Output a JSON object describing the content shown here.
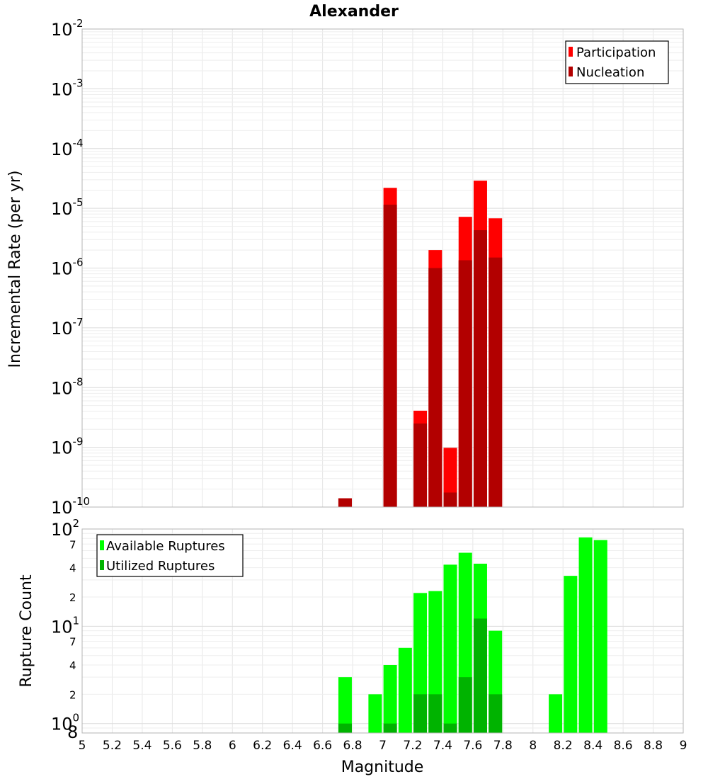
{
  "chart_data": [
    {
      "type": "bar",
      "title": "Alexander",
      "ylabel": "Incremental Rate (per yr)",
      "yscale": "log",
      "ylim": [
        1e-10,
        0.01
      ],
      "ytick_labels": [
        {
          "base": "10",
          "exp": "-10"
        },
        {
          "base": "10",
          "exp": "-9"
        },
        {
          "base": "10",
          "exp": "-8"
        },
        {
          "base": "10",
          "exp": "-7"
        },
        {
          "base": "10",
          "exp": "-6"
        },
        {
          "base": "10",
          "exp": "-5"
        },
        {
          "base": "10",
          "exp": "-4"
        },
        {
          "base": "10",
          "exp": "-3"
        },
        {
          "base": "10",
          "exp": "-2"
        }
      ],
      "xlim": [
        5,
        9
      ],
      "grid": true,
      "legend_position": "top-right",
      "series": [
        {
          "name": "Participation",
          "color": "#ff0000",
          "x": [
            6.75,
            7.05,
            7.25,
            7.35,
            7.45,
            7.55,
            7.65,
            7.75
          ],
          "values": [
            1.4e-10,
            2.2e-05,
            4.1e-09,
            2e-06,
            9.8e-10,
            7.2e-06,
            2.9e-05,
            6.8e-06
          ]
        },
        {
          "name": "Nucleation",
          "color": "#b20000",
          "x": [
            6.75,
            7.05,
            7.25,
            7.35,
            7.45,
            7.55,
            7.65,
            7.75
          ],
          "values": [
            1.4e-10,
            1.15e-05,
            2.5e-09,
            1e-06,
            1.75e-10,
            1.35e-06,
            4.3e-06,
            1.5e-06
          ]
        }
      ]
    },
    {
      "type": "bar",
      "ylabel": "Rupture Count",
      "xlabel": "Magnitude",
      "yscale": "log",
      "ylim": [
        0.8,
        100
      ],
      "major_ticks": [
        {
          "base": "10",
          "exp": "0"
        },
        {
          "base": "10",
          "exp": "1"
        },
        {
          "base": "10",
          "exp": "2"
        }
      ],
      "minor_tick_labels": [
        "8",
        "2",
        "4",
        "7",
        "2",
        "4",
        "7"
      ],
      "xlim": [
        5,
        9
      ],
      "xtick_labels": [
        "5",
        "5.2",
        "5.4",
        "5.6",
        "5.8",
        "6",
        "6.2",
        "6.4",
        "6.6",
        "6.8",
        "7",
        "7.2",
        "7.4",
        "7.6",
        "7.8",
        "8",
        "8.2",
        "8.4",
        "8.6",
        "8.8",
        "9"
      ],
      "grid": true,
      "legend_position": "top-left",
      "series": [
        {
          "name": "Available Ruptures",
          "color": "#00ff00",
          "x": [
            6.75,
            6.95,
            7.05,
            7.15,
            7.25,
            7.35,
            7.45,
            7.55,
            7.65,
            7.75,
            8.15,
            8.25,
            8.35,
            8.45
          ],
          "values": [
            3,
            2,
            4,
            6,
            22,
            23,
            43,
            57,
            44,
            9,
            2,
            33,
            82,
            77
          ]
        },
        {
          "name": "Utilized Ruptures",
          "color": "#00b300",
          "x": [
            6.75,
            7.05,
            7.25,
            7.35,
            7.45,
            7.55,
            7.65,
            7.75
          ],
          "values": [
            1,
            1,
            2,
            2,
            1,
            3,
            12,
            2
          ]
        }
      ]
    }
  ]
}
